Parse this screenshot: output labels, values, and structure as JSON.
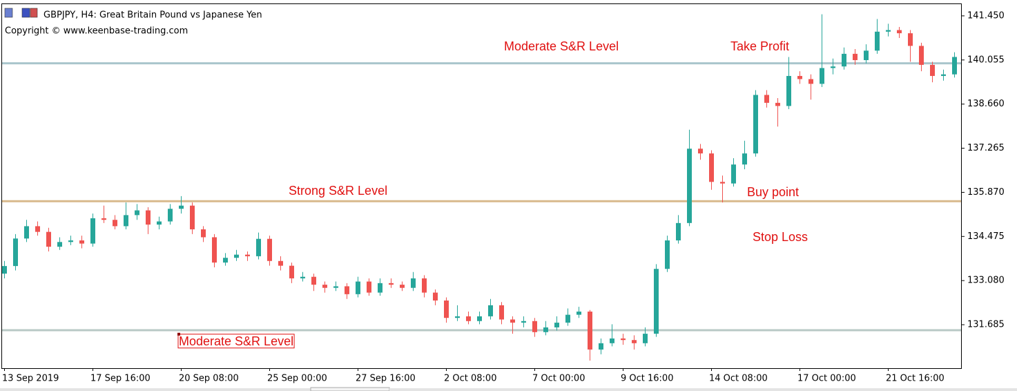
{
  "chart_data": {
    "type": "candlestick",
    "title": "GBPJPY, H4:  Great Britain Pound vs Japanese Yen",
    "subtitle": "Copyright © www.keenbase-trading.com",
    "categories": [
      "13 Sep 2019",
      null,
      null,
      null,
      null,
      null,
      null,
      null,
      "17 Sep 16:00",
      null,
      null,
      null,
      null,
      null,
      null,
      null,
      "20 Sep 08:00",
      null,
      null,
      null,
      null,
      null,
      null,
      null,
      "25 Sep 00:00",
      null,
      null,
      null,
      null,
      null,
      null,
      null,
      "27 Sep 16:00",
      null,
      null,
      null,
      null,
      null,
      null,
      null,
      "2 Oct 08:00",
      null,
      null,
      null,
      null,
      null,
      null,
      null,
      "7 Oct 00:00",
      null,
      null,
      null,
      null,
      null,
      null,
      null,
      "9 Oct 16:00",
      null,
      null,
      null,
      null,
      null,
      null,
      null,
      "14 Oct 08:00",
      null,
      null,
      null,
      null,
      null,
      null,
      null,
      "17 Oct 00:00",
      null,
      null,
      null,
      null,
      null,
      null,
      null,
      "21 Oct 16:00",
      null,
      null,
      null,
      null,
      null,
      null
    ],
    "open": [
      133.3,
      133.54,
      134.41,
      134.8,
      134.62,
      134.15,
      134.3,
      134.35,
      134.25,
      135.05,
      135.0,
      134.8,
      135.15,
      135.3,
      134.85,
      134.95,
      135.35,
      135.45,
      134.7,
      134.45,
      133.65,
      133.8,
      133.9,
      133.85,
      134.4,
      133.7,
      133.55,
      133.15,
      133.2,
      132.95,
      132.85,
      132.9,
      132.65,
      133.05,
      132.7,
      133.0,
      132.95,
      132.85,
      133.15,
      132.7,
      132.45,
      131.9,
      131.95,
      131.8,
      131.95,
      132.3,
      131.85,
      131.75,
      131.8,
      131.45,
      131.6,
      131.75,
      132.0,
      132.1,
      130.9,
      131.1,
      131.25,
      131.2,
      131.1,
      131.4,
      133.45,
      134.35,
      134.9,
      137.25,
      137.1,
      136.2,
      136.15,
      136.75,
      137.1,
      138.95,
      138.7,
      138.6,
      139.55,
      139.45,
      139.3,
      139.8,
      139.85,
      140.25,
      140.05,
      140.35,
      140.95,
      141.0,
      140.9,
      140.5,
      139.9,
      139.55,
      139.6
    ],
    "high": [
      133.7,
      134.55,
      135.0,
      134.95,
      134.75,
      134.45,
      134.5,
      134.5,
      135.2,
      135.45,
      135.15,
      135.55,
      135.5,
      135.4,
      135.1,
      135.5,
      135.75,
      135.55,
      134.8,
      134.55,
      133.95,
      134.05,
      134.0,
      134.6,
      134.5,
      133.85,
      133.65,
      133.35,
      133.3,
      133.05,
      133.05,
      133.0,
      133.2,
      133.15,
      133.15,
      133.15,
      133.05,
      133.35,
      133.25,
      132.8,
      132.55,
      132.3,
      132.1,
      132.1,
      132.5,
      132.4,
      131.95,
      131.95,
      131.9,
      131.8,
      131.95,
      132.2,
      132.25,
      132.15,
      131.25,
      131.7,
      131.4,
      131.35,
      131.6,
      133.6,
      134.5,
      135.15,
      137.85,
      137.4,
      137.2,
      136.4,
      136.95,
      137.5,
      139.1,
      139.1,
      138.85,
      140.15,
      139.7,
      139.6,
      141.5,
      140.1,
      140.45,
      140.4,
      140.55,
      141.35,
      141.2,
      141.1,
      141.0,
      140.6,
      140.0,
      139.75,
      140.3
    ],
    "low": [
      133.15,
      133.4,
      134.3,
      134.5,
      134.0,
      134.05,
      134.2,
      134.1,
      134.15,
      134.9,
      134.7,
      134.7,
      135.0,
      134.55,
      134.7,
      134.85,
      135.2,
      134.55,
      134.3,
      133.5,
      133.55,
      133.7,
      133.7,
      133.75,
      133.55,
      133.4,
      133.0,
      133.05,
      132.75,
      132.7,
      132.75,
      132.5,
      132.55,
      132.6,
      132.6,
      132.85,
      132.75,
      132.75,
      132.55,
      132.3,
      131.75,
      131.8,
      131.7,
      131.7,
      131.85,
      131.7,
      131.4,
      131.6,
      131.3,
      131.35,
      131.5,
      131.65,
      131.9,
      130.55,
      130.75,
      131.0,
      131.05,
      130.9,
      131.0,
      131.3,
      133.35,
      134.25,
      134.8,
      136.9,
      135.95,
      135.55,
      136.05,
      136.6,
      137.0,
      138.55,
      137.95,
      138.5,
      139.3,
      138.8,
      139.2,
      139.6,
      139.75,
      139.9,
      139.95,
      140.25,
      140.8,
      140.75,
      140.0,
      139.7,
      139.35,
      139.4,
      139.5
    ],
    "close": [
      133.54,
      134.41,
      134.8,
      134.62,
      134.15,
      134.3,
      134.35,
      134.25,
      135.05,
      135.0,
      134.8,
      135.15,
      135.3,
      134.85,
      134.95,
      135.35,
      135.45,
      134.7,
      134.45,
      133.65,
      133.8,
      133.9,
      133.85,
      134.4,
      133.7,
      133.55,
      133.15,
      133.2,
      132.95,
      132.85,
      132.9,
      132.65,
      133.05,
      132.7,
      133.0,
      132.95,
      132.85,
      133.15,
      132.7,
      132.45,
      131.9,
      131.95,
      131.8,
      131.95,
      132.3,
      131.85,
      131.75,
      131.8,
      131.45,
      131.6,
      131.75,
      132.0,
      132.1,
      130.9,
      131.1,
      131.25,
      131.2,
      131.1,
      131.4,
      133.45,
      134.35,
      134.9,
      137.25,
      137.1,
      136.2,
      136.15,
      136.75,
      137.1,
      138.95,
      138.7,
      138.6,
      139.55,
      139.45,
      139.3,
      139.8,
      139.85,
      140.25,
      140.05,
      140.35,
      140.95,
      141.0,
      140.9,
      140.5,
      139.9,
      139.55,
      139.6,
      140.15
    ],
    "up_color": "#26a69a",
    "down_color": "#ef5350",
    "ylim": [
      130.31,
      141.82
    ],
    "yticks": [
      {
        "value": 141.45,
        "label": "141.450"
      },
      140.055,
      {
        "value": 138.66,
        "label": "138.660"
      },
      137.265,
      {
        "value": 135.87,
        "label": "135.870"
      },
      134.475,
      {
        "value": 133.08,
        "label": "133.080"
      },
      131.685
    ],
    "levels": [
      {
        "value": 139.95,
        "color": "#a9c5cc"
      },
      {
        "value": 135.59,
        "color": "#d8b98c"
      },
      {
        "value": 131.51,
        "color": "#b8c9c6"
      }
    ],
    "annotations": [
      "Moderate S&R Level",
      "Take Profit",
      "Strong S&R Level",
      "Buy point",
      "Stop Loss",
      "Moderate S&R Level"
    ]
  }
}
